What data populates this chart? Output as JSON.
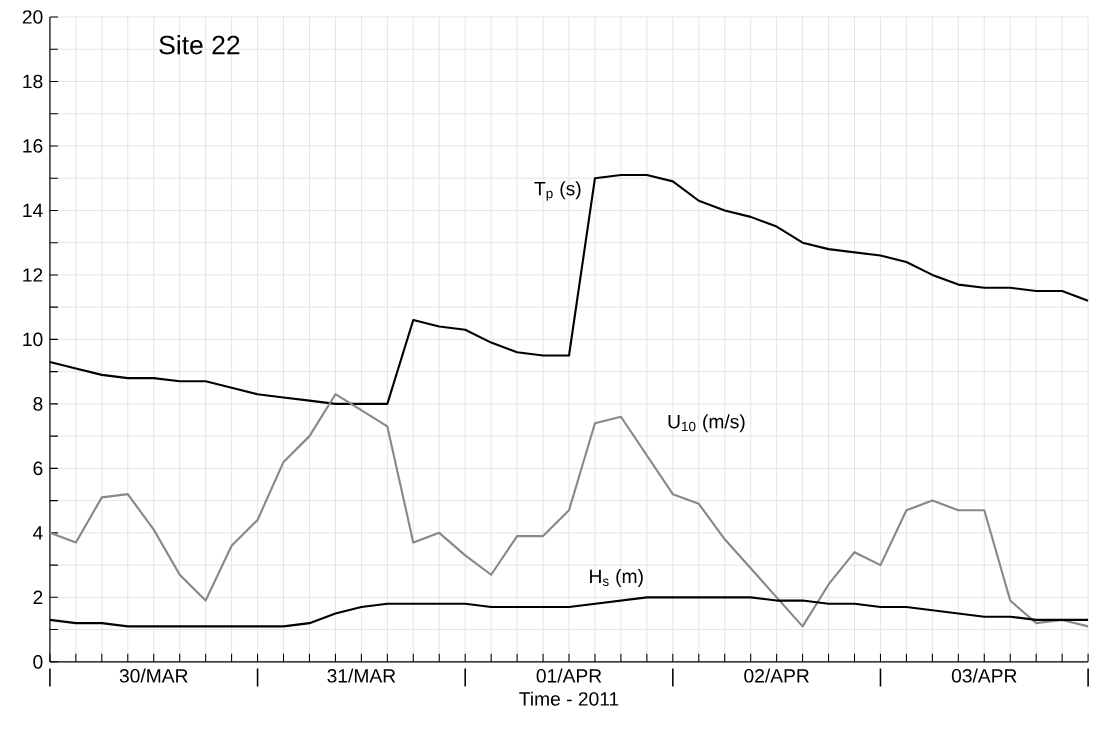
{
  "chart_data": {
    "type": "line",
    "title": "Site 22",
    "xlabel": "Time - 2011",
    "x": [
      "2011-03-30T00:00",
      "2011-03-30T03:00",
      "2011-03-30T06:00",
      "2011-03-30T09:00",
      "2011-03-30T12:00",
      "2011-03-30T15:00",
      "2011-03-30T18:00",
      "2011-03-30T21:00",
      "2011-03-31T00:00",
      "2011-03-31T03:00",
      "2011-03-31T06:00",
      "2011-03-31T09:00",
      "2011-03-31T12:00",
      "2011-03-31T15:00",
      "2011-03-31T18:00",
      "2011-03-31T21:00",
      "2011-04-01T00:00",
      "2011-04-01T03:00",
      "2011-04-01T06:00",
      "2011-04-01T09:00",
      "2011-04-01T12:00",
      "2011-04-01T15:00",
      "2011-04-01T18:00",
      "2011-04-01T21:00",
      "2011-04-02T00:00",
      "2011-04-02T03:00",
      "2011-04-02T06:00",
      "2011-04-02T09:00",
      "2011-04-02T12:00",
      "2011-04-02T15:00",
      "2011-04-02T18:00",
      "2011-04-02T21:00",
      "2011-04-03T00:00",
      "2011-04-03T03:00",
      "2011-04-03T06:00",
      "2011-04-03T09:00",
      "2011-04-03T12:00",
      "2011-04-03T15:00",
      "2011-04-03T18:00",
      "2011-04-03T21:00",
      "2011-04-04T00:00"
    ],
    "series": [
      {
        "name": "T$_{p}$ (s)",
        "color": "#000000",
        "values": [
          9.3,
          9.1,
          8.9,
          8.8,
          8.8,
          8.7,
          8.7,
          8.5,
          8.3,
          8.2,
          8.1,
          8.0,
          8.0,
          8.0,
          10.6,
          10.4,
          10.3,
          9.9,
          9.6,
          9.5,
          9.5,
          15.0,
          15.1,
          15.1,
          14.9,
          14.3,
          14.0,
          13.8,
          13.5,
          13.0,
          12.8,
          12.7,
          12.6,
          12.4,
          12.0,
          11.7,
          11.6,
          11.6,
          11.5,
          11.5,
          11.2
        ]
      },
      {
        "name": "U$_{10}$ (m/s)",
        "color": "#888888",
        "values": [
          4.0,
          3.7,
          5.1,
          5.2,
          4.1,
          2.7,
          1.9,
          3.6,
          4.4,
          6.2,
          7.0,
          8.3,
          7.8,
          7.3,
          3.7,
          4.0,
          3.3,
          2.7,
          3.9,
          3.9,
          4.7,
          7.4,
          7.6,
          6.4,
          5.2,
          4.9,
          3.8,
          2.9,
          2.0,
          1.1,
          2.4,
          3.4,
          3.0,
          4.7,
          5.0,
          4.7,
          4.7,
          1.9,
          1.2,
          1.3,
          1.1
        ]
      },
      {
        "name": "H$_{s}$ (m)",
        "color": "#000000",
        "values": [
          1.3,
          1.2,
          1.2,
          1.1,
          1.1,
          1.1,
          1.1,
          1.1,
          1.1,
          1.1,
          1.2,
          1.5,
          1.7,
          1.8,
          1.8,
          1.8,
          1.8,
          1.7,
          1.7,
          1.7,
          1.7,
          1.8,
          1.9,
          2.0,
          2.0,
          2.0,
          2.0,
          2.0,
          1.9,
          1.9,
          1.8,
          1.8,
          1.7,
          1.7,
          1.6,
          1.5,
          1.4,
          1.4,
          1.3,
          1.3,
          1.3
        ]
      }
    ],
    "xlim": [
      "2011-03-30T00:00",
      "2011-04-04T00:00"
    ],
    "ylim": [
      0,
      20
    ],
    "xticks": [
      {
        "value": "2011-03-30T00:00",
        "label": "|"
      },
      {
        "value": "2011-03-30T12:00",
        "label": "30/MAR"
      },
      {
        "value": "2011-03-31T00:00",
        "label": "|"
      },
      {
        "value": "2011-03-31T12:00",
        "label": "31/MAR"
      },
      {
        "value": "2011-04-01T00:00",
        "label": "|"
      },
      {
        "value": "2011-04-01T12:00",
        "label": "01/APR"
      },
      {
        "value": "2011-04-02T00:00",
        "label": "|"
      },
      {
        "value": "2011-04-02T12:00",
        "label": "02/APR"
      },
      {
        "value": "2011-04-03T00:00",
        "label": "|"
      },
      {
        "value": "2011-04-03T12:00",
        "label": "03/APR"
      },
      {
        "value": "2011-04-04T00:00",
        "label": "|"
      }
    ],
    "yticks": [
      0,
      2,
      4,
      6,
      8,
      10,
      12,
      14,
      16,
      18,
      20
    ],
    "grid": true,
    "line_style": "solid"
  }
}
